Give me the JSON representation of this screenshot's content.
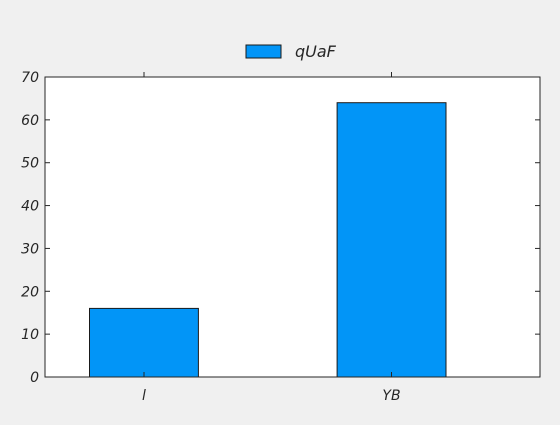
{
  "chart_data": {
    "type": "bar",
    "categories": [
      "l",
      "YB"
    ],
    "series": [
      {
        "name": "qUaF",
        "values": [
          16,
          64
        ]
      }
    ],
    "ylim": [
      0,
      70
    ],
    "yticks": [
      0,
      10,
      20,
      30,
      40,
      50,
      60,
      70
    ],
    "grid": false,
    "legend": "top-center",
    "colors": {
      "bar": "#0295f7",
      "bar_edge": "#1a1a1a",
      "plot_background": "#ffffff",
      "figure_background": "#f0f0f0",
      "axis": "#262626"
    }
  }
}
